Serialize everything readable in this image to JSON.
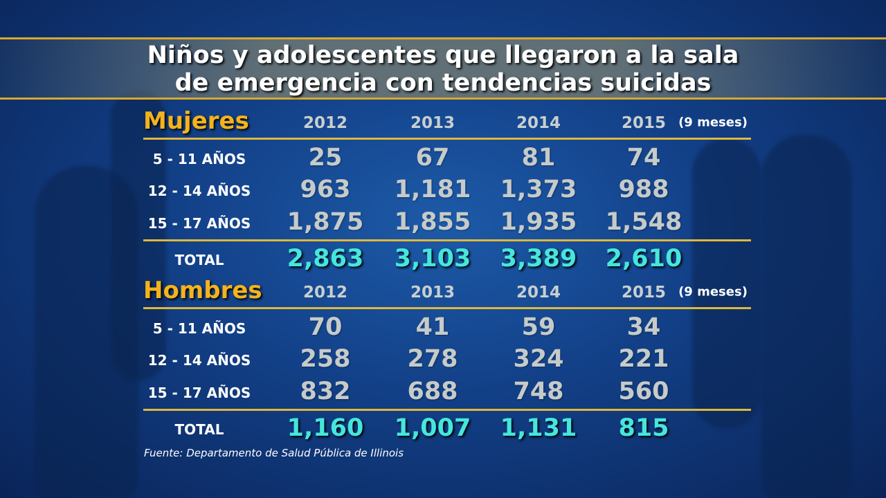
{
  "title_line1": "Niños y adolescentes que llegaron a la sala",
  "title_line2": "de emergencia con tendencias suicidas",
  "source": "Fuente: Departamento de Salud Pública de Illinois",
  "colors": {
    "section": "#f4b31c",
    "total": "#46e6dc",
    "rule": "#e0b83a",
    "background": "#123f86"
  },
  "chart_data": {
    "type": "table",
    "columns": [
      "2012",
      "2013",
      "2014",
      "2015"
    ],
    "column_note": "(9 meses)",
    "sections": [
      {
        "name": "Mujeres",
        "rows": [
          {
            "label": "5 - 11 AÑOS",
            "values": [
              "25",
              "67",
              "81",
              "74"
            ]
          },
          {
            "label": "12 - 14 AÑOS",
            "values": [
              "963",
              "1,181",
              "1,373",
              "988"
            ]
          },
          {
            "label": "15 - 17 AÑOS",
            "values": [
              "1,875",
              "1,855",
              "1,935",
              "1,548"
            ]
          }
        ],
        "total": {
          "label": "TOTAL",
          "values": [
            "2,863",
            "3,103",
            "3,389",
            "2,610"
          ]
        }
      },
      {
        "name": "Hombres",
        "rows": [
          {
            "label": "5 - 11 AÑOS",
            "values": [
              "70",
              "41",
              "59",
              "34"
            ]
          },
          {
            "label": "12 - 14 AÑOS",
            "values": [
              "258",
              "278",
              "324",
              "221"
            ]
          },
          {
            "label": "15 - 17 AÑOS",
            "values": [
              "832",
              "688",
              "748",
              "560"
            ]
          }
        ],
        "total": {
          "label": "TOTAL",
          "values": [
            "1,160",
            "1,007",
            "1,131",
            "815"
          ]
        }
      }
    ]
  }
}
